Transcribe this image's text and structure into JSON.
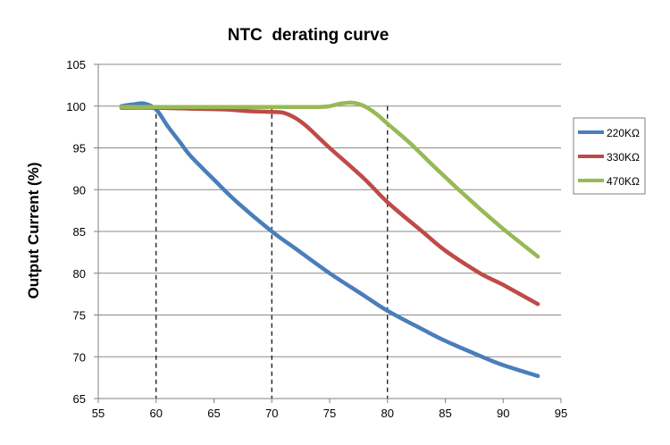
{
  "chart_data": {
    "type": "line",
    "title": "NTC  derating curve",
    "xlabel": "",
    "ylabel": "Output Current (%)",
    "xlim": [
      55,
      95
    ],
    "ylim": [
      65,
      105
    ],
    "x_ticks": [
      55,
      60,
      65,
      70,
      75,
      80,
      85,
      90,
      95
    ],
    "y_ticks": [
      65,
      70,
      75,
      80,
      85,
      90,
      95,
      100,
      105
    ],
    "grid": "horizontal",
    "legend": "right",
    "reference_lines_x": [
      60,
      70,
      80
    ],
    "series": [
      {
        "name": "220KΩ",
        "color": "#4a7ebb",
        "points": [
          [
            57,
            100
          ],
          [
            58,
            100.2
          ],
          [
            59,
            100.3
          ],
          [
            60,
            99.6
          ],
          [
            61,
            97.6
          ],
          [
            62,
            95.8
          ],
          [
            63,
            94
          ],
          [
            65,
            91.2
          ],
          [
            67,
            88.5
          ],
          [
            70,
            85
          ],
          [
            72,
            83
          ],
          [
            75,
            80
          ],
          [
            78,
            77.3
          ],
          [
            80,
            75.5
          ],
          [
            83,
            73.3
          ],
          [
            85,
            71.9
          ],
          [
            88,
            70.1
          ],
          [
            90,
            69
          ],
          [
            93,
            67.7
          ]
        ]
      },
      {
        "name": "330KΩ",
        "color": "#be4b48",
        "points": [
          [
            57,
            99.8
          ],
          [
            60,
            99.8
          ],
          [
            63,
            99.7
          ],
          [
            66,
            99.6
          ],
          [
            68,
            99.4
          ],
          [
            70,
            99.3
          ],
          [
            71,
            99.2
          ],
          [
            72,
            98.6
          ],
          [
            73,
            97.6
          ],
          [
            75,
            95
          ],
          [
            78,
            91.3
          ],
          [
            80,
            88.5
          ],
          [
            83,
            85
          ],
          [
            85,
            82.7
          ],
          [
            88,
            80
          ],
          [
            90,
            78.6
          ],
          [
            93,
            76.3
          ]
        ]
      },
      {
        "name": "470KΩ",
        "color": "#98b954",
        "points": [
          [
            57,
            99.9
          ],
          [
            60,
            99.9
          ],
          [
            65,
            99.9
          ],
          [
            70,
            99.9
          ],
          [
            74,
            99.9
          ],
          [
            75,
            100
          ],
          [
            76,
            100.3
          ],
          [
            77,
            100.4
          ],
          [
            78,
            100
          ],
          [
            79,
            99.1
          ],
          [
            80,
            97.9
          ],
          [
            82,
            95.5
          ],
          [
            84,
            92.8
          ],
          [
            86,
            90.2
          ],
          [
            88,
            87.7
          ],
          [
            90,
            85.3
          ],
          [
            93,
            82
          ]
        ]
      }
    ]
  }
}
